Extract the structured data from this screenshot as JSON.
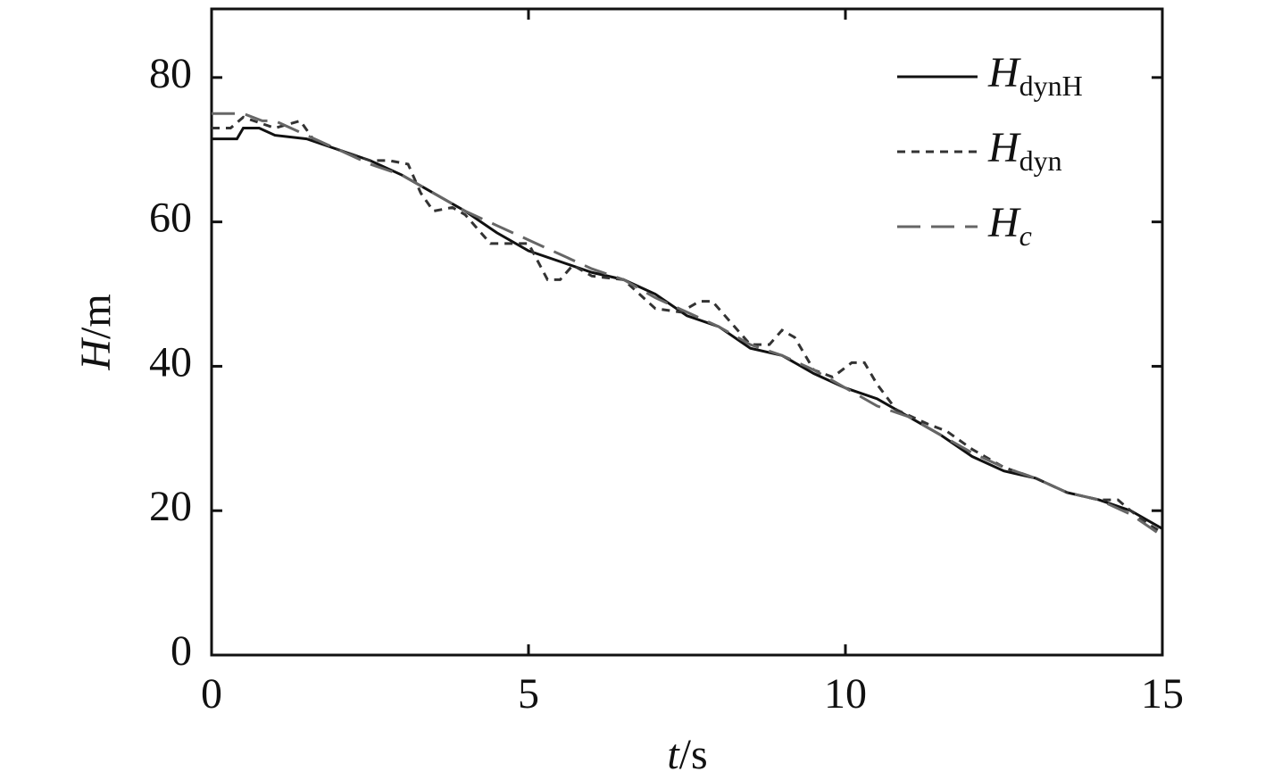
{
  "chart_data": {
    "type": "line",
    "xlabel": "t/s",
    "ylabel": "H/m",
    "xlim": [
      0,
      15
    ],
    "ylim": [
      0,
      89.5
    ],
    "xticks": [
      0,
      5,
      10,
      15
    ],
    "yticks": [
      0,
      20,
      40,
      60,
      80
    ],
    "legend": "upper right",
    "series": [
      {
        "name": "HdynH",
        "color": "#111111",
        "dash": "solid",
        "x": [
          0,
          0.4,
          0.5,
          0.75,
          1,
          1.5,
          2,
          2.5,
          3,
          3.5,
          4,
          4.5,
          5,
          5.5,
          6,
          6.5,
          7,
          7.5,
          8,
          8.5,
          9,
          9.5,
          10,
          10.5,
          11,
          11.5,
          12,
          12.5,
          13,
          13.5,
          14,
          14.5,
          15
        ],
        "values": [
          71.5,
          71.5,
          73,
          73,
          72,
          71.5,
          70,
          68.5,
          66.5,
          64,
          61.5,
          58.5,
          56,
          54.5,
          53,
          52,
          50,
          47,
          45.5,
          42.5,
          41.5,
          39,
          37,
          35.5,
          33,
          30.5,
          27.5,
          25.5,
          24.5,
          22.5,
          21.5,
          20,
          17.5
        ]
      },
      {
        "name": "Hdyn",
        "color": "#333333",
        "dash": "dotted",
        "x": [
          0,
          0.3,
          0.5,
          1,
          1.4,
          1.6,
          2,
          2.5,
          2.8,
          3.1,
          3.3,
          3.5,
          3.8,
          4,
          4.4,
          4.7,
          5,
          5.3,
          5.5,
          5.7,
          6,
          6.5,
          7,
          7.4,
          7.7,
          7.9,
          8.2,
          8.5,
          8.8,
          9,
          9.2,
          9.5,
          9.8,
          10.1,
          10.3,
          10.5,
          10.8,
          11.3,
          11.6,
          12,
          12.5,
          13,
          13.5,
          14,
          14.3,
          14.5,
          14.8,
          15
        ],
        "values": [
          73,
          73,
          74.5,
          73,
          74,
          71.5,
          70,
          68.5,
          68.5,
          68,
          64,
          61.5,
          62,
          61,
          57,
          57,
          57,
          52,
          52,
          54,
          52.5,
          52,
          48,
          47.5,
          49,
          49,
          46,
          43,
          43,
          45,
          44,
          39.5,
          38.5,
          40.5,
          40.5,
          37.5,
          34,
          32,
          31,
          28.5,
          26,
          24.5,
          22.5,
          21.5,
          21.5,
          20,
          18,
          17
        ]
      },
      {
        "name": "Hc",
        "color": "#666666",
        "dash": "dashed",
        "x": [
          0,
          0.5,
          0.8,
          1,
          1.5,
          2,
          2.5,
          3,
          3.5,
          4,
          4.5,
          5,
          5.5,
          6,
          6.5,
          7,
          7.5,
          8,
          8.5,
          9,
          9.5,
          10,
          10.5,
          11,
          11.5,
          12,
          12.5,
          13,
          13.5,
          14,
          14.5,
          15
        ],
        "values": [
          75,
          75,
          74,
          74,
          72,
          70,
          68,
          66.5,
          64,
          61.5,
          59.5,
          57.5,
          55.5,
          53.5,
          52,
          49.5,
          47.5,
          45.5,
          43,
          41.5,
          39.5,
          37,
          34.5,
          33,
          30.5,
          28,
          26,
          24.5,
          22.5,
          21.5,
          19.5,
          16.5
        ]
      }
    ]
  }
}
